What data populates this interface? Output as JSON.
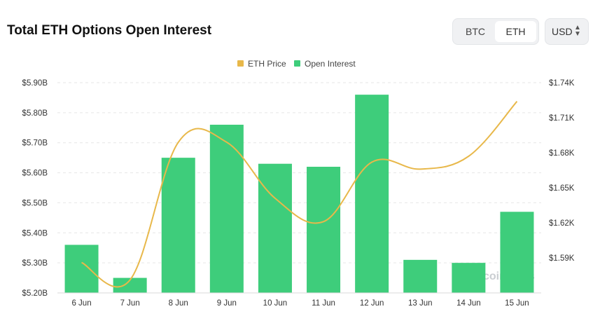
{
  "header": {
    "title": "Total ETH Options Open Interest",
    "asset_options": [
      "BTC",
      "ETH"
    ],
    "selected_asset": "ETH",
    "currency": "USD",
    "currency_icon": "updown-caret-icon"
  },
  "watermark": "coinglass",
  "colors": {
    "bar": "#3ecd7b",
    "line": "#e8b84a",
    "grid": "#e6e6e6"
  },
  "chart_data": {
    "type": "bar",
    "categories": [
      "6 Jun",
      "7 Jun",
      "8 Jun",
      "9 Jun",
      "10 Jun",
      "11 Jun",
      "12 Jun",
      "13 Jun",
      "14 Jun",
      "15 Jun"
    ],
    "series": [
      {
        "name": "Open Interest",
        "type": "bar",
        "axis": "left",
        "values": [
          5.36,
          5.25,
          5.65,
          5.76,
          5.63,
          5.62,
          5.86,
          5.31,
          5.3,
          5.47
        ]
      },
      {
        "name": "ETH Price",
        "type": "line",
        "axis": "right",
        "values": [
          1586,
          1571,
          1689,
          1689,
          1641,
          1621,
          1672,
          1666,
          1677,
          1724
        ]
      }
    ],
    "y_left": {
      "ylim": [
        5.2,
        5.9
      ],
      "ticks": [
        "$5.20B",
        "$5.30B",
        "$5.40B",
        "$5.50B",
        "$5.60B",
        "$5.70B",
        "$5.80B",
        "$5.90B"
      ]
    },
    "y_right": {
      "ylim": [
        1560,
        1740
      ],
      "ticks": [
        "$1.59K",
        "$1.62K",
        "$1.65K",
        "$1.68K",
        "$1.71K",
        "$1.74K"
      ]
    },
    "legend": {
      "placement": "top-center",
      "entries": [
        "ETH Price",
        "Open Interest"
      ]
    },
    "grid": true
  }
}
